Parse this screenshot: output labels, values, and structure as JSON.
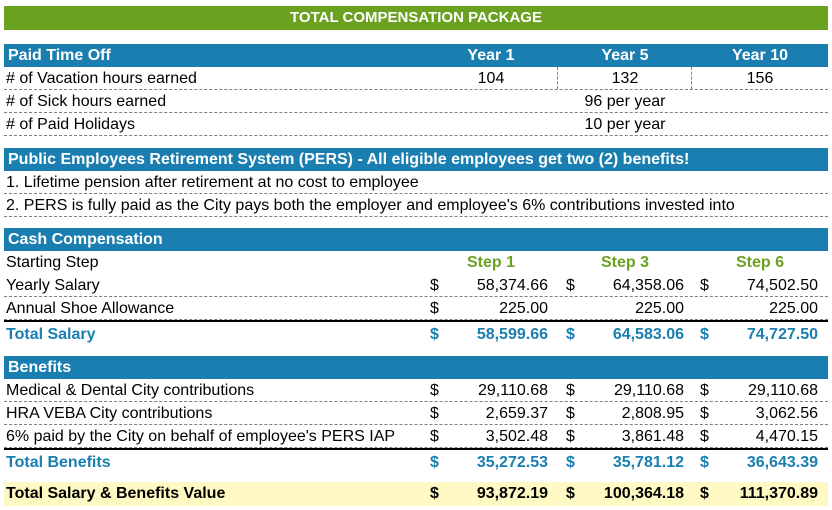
{
  "title": "TOTAL COMPENSATION PACKAGE",
  "pto": {
    "header": {
      "label": "Paid Time Off",
      "year1": "Year 1",
      "year5": "Year 5",
      "year10": "Year 10"
    },
    "vacation": {
      "label": "# of Vacation hours earned",
      "year1": "104",
      "year5": "132",
      "year10": "156"
    },
    "sick": {
      "label": "# of Sick hours earned",
      "value": "96 per year"
    },
    "holidays": {
      "label": "# of Paid Holidays",
      "value": "10 per year"
    }
  },
  "pers": {
    "header": "Public Employees Retirement System (PERS) - All eligible employees get two (2) benefits!",
    "item1": "1. Lifetime pension after retirement at no cost to employee",
    "item2": "2.  PERS is fully paid as the City pays both the employer and employee's 6% contributions invested into"
  },
  "cash": {
    "header": "Cash Compensation",
    "starting": {
      "label": "Starting Step",
      "step1": "Step 1",
      "step3": "Step 3",
      "step6": "Step 6"
    },
    "salary": {
      "label": "Yearly Salary",
      "cur": "$",
      "step1": "58,374.66",
      "step3": "64,358.06",
      "step6": "74,502.50"
    },
    "shoe": {
      "label": "Annual Shoe Allowance",
      "cur": "$",
      "step1": "225.00",
      "step3": "225.00",
      "step6": "225.00"
    },
    "total": {
      "label": "Total Salary",
      "cur": "$",
      "step1": "58,599.66",
      "step3": "64,583.06",
      "step6": "74,727.50"
    }
  },
  "benefits": {
    "header": "Benefits",
    "medical": {
      "label": "Medical & Dental City contributions",
      "cur": "$",
      "step1": "29,110.68",
      "step3": "29,110.68",
      "step6": "29,110.68"
    },
    "hra": {
      "label": "HRA VEBA City contributions",
      "cur": "$",
      "step1": "2,659.37",
      "step3": "2,808.95",
      "step6": "3,062.56"
    },
    "pers_iap": {
      "label": "6% paid by the City on behalf of employee's PERS IAP",
      "cur": "$",
      "step1": "3,502.48",
      "step3": "3,861.48",
      "step6": "4,470.15"
    },
    "total": {
      "label": "Total Benefits",
      "cur": "$",
      "step1": "35,272.53",
      "step3": "35,781.12",
      "step6": "36,643.39"
    }
  },
  "grand": {
    "label": "Total Salary & Benefits Value",
    "cur": "$",
    "step1": "93,872.19",
    "step3": "100,364.18",
    "step6": "111,370.89"
  },
  "colors": {
    "green": "#6aa121",
    "blue": "#1a7fb0",
    "highlight": "#fff9c4"
  }
}
